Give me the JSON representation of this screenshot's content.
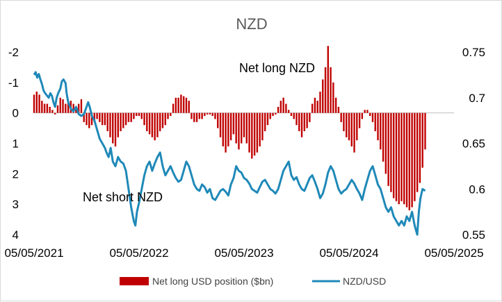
{
  "chart_data": {
    "type": "bar+line",
    "title": "NZD",
    "x_tick_labels": [
      "05/05/2021",
      "05/05/2022",
      "05/05/2023",
      "05/05/2024",
      "05/05/2025"
    ],
    "left_axis": {
      "ticks": [
        -2,
        -1,
        0,
        1,
        2,
        3,
        4
      ],
      "tick_labels": [
        "-2",
        "-1",
        "0",
        "1",
        "2",
        "3",
        "4"
      ],
      "range": [
        -2,
        4
      ],
      "inverted": true
    },
    "right_axis": {
      "ticks": [
        0.75,
        0.7,
        0.65,
        0.6,
        0.55
      ],
      "tick_labels": [
        "0.75",
        "0.7",
        "0.65",
        "0.6",
        "0.55"
      ],
      "range": [
        0.55,
        0.75
      ]
    },
    "annotations": {
      "net_long": "Net long NZD",
      "net_short": "Net short NZD"
    },
    "grid": false,
    "legend_position": "bottom",
    "series": [
      {
        "name": "Net long USD position ($bn)",
        "type": "bar",
        "axis": "left",
        "color": "#c00000",
        "points": [
          [
            0,
            -0.6
          ],
          [
            0.05,
            -0.7
          ],
          [
            0.1,
            -0.6
          ],
          [
            0.15,
            -0.4
          ],
          [
            0.2,
            -0.3
          ],
          [
            0.25,
            -0.3
          ],
          [
            0.3,
            -0.2
          ],
          [
            0.35,
            -0.1
          ],
          [
            0.4,
            0.05
          ],
          [
            0.45,
            -0.25
          ],
          [
            0.5,
            -0.5
          ],
          [
            0.55,
            -0.45
          ],
          [
            0.6,
            -0.3
          ],
          [
            0.65,
            -0.4
          ],
          [
            0.7,
            -0.4
          ],
          [
            0.75,
            -0.3
          ],
          [
            0.8,
            -0.2
          ],
          [
            0.85,
            -0.3
          ],
          [
            0.9,
            -0.45
          ],
          [
            0.95,
            0.3
          ],
          [
            1.0,
            0.4
          ],
          [
            1.05,
            0.5
          ],
          [
            1.1,
            0.4
          ],
          [
            1.15,
            0.3
          ],
          [
            1.2,
            0.2
          ],
          [
            1.25,
            0.3
          ],
          [
            1.3,
            0.4
          ],
          [
            1.35,
            0.4
          ],
          [
            1.4,
            0.6
          ],
          [
            1.45,
            0.8
          ],
          [
            1.5,
            1.0
          ],
          [
            1.55,
            1.1
          ],
          [
            1.6,
            0.8
          ],
          [
            1.65,
            0.6
          ],
          [
            1.7,
            0.5
          ],
          [
            1.75,
            0.4
          ],
          [
            1.8,
            0.3
          ],
          [
            1.85,
            0.3
          ],
          [
            1.9,
            0.2
          ],
          [
            1.95,
            0.1
          ],
          [
            2.0,
            0.1
          ],
          [
            2.05,
            0.2
          ],
          [
            2.1,
            0.4
          ],
          [
            2.15,
            0.6
          ],
          [
            2.2,
            0.7
          ],
          [
            2.25,
            0.8
          ],
          [
            2.3,
            0.9
          ],
          [
            2.35,
            0.8
          ],
          [
            2.4,
            0.6
          ],
          [
            2.45,
            0.5
          ],
          [
            2.5,
            0.4
          ],
          [
            2.55,
            0.2
          ],
          [
            2.6,
            0.1
          ],
          [
            2.65,
            -0.3
          ],
          [
            2.7,
            -0.5
          ],
          [
            2.75,
            -0.5
          ],
          [
            2.8,
            -0.6
          ],
          [
            2.85,
            -0.55
          ],
          [
            2.9,
            -0.5
          ],
          [
            2.95,
            -0.4
          ],
          [
            3.0,
            0.2
          ],
          [
            3.05,
            0.3
          ],
          [
            3.1,
            0.3
          ],
          [
            3.15,
            0.2
          ],
          [
            3.2,
            0.2
          ],
          [
            3.25,
            0.1
          ],
          [
            3.3,
            0.05
          ],
          [
            3.35,
            0.05
          ],
          [
            3.4,
            0.1
          ],
          [
            3.45,
            0.2
          ],
          [
            3.5,
            0.5
          ],
          [
            3.55,
            0.8
          ],
          [
            3.6,
            1.1
          ],
          [
            3.65,
            1.3
          ],
          [
            3.7,
            1.1
          ],
          [
            3.75,
            0.9
          ],
          [
            3.8,
            0.7
          ],
          [
            3.85,
            1.0
          ],
          [
            3.9,
            1.2
          ],
          [
            3.95,
            1.0
          ],
          [
            4.0,
            0.8
          ],
          [
            4.05,
            1.0
          ],
          [
            4.1,
            1.3
          ],
          [
            4.15,
            1.5
          ],
          [
            4.2,
            1.4
          ],
          [
            4.25,
            1.3
          ],
          [
            4.3,
            1.1
          ],
          [
            4.35,
            0.9
          ],
          [
            4.4,
            0.6
          ],
          [
            4.45,
            0.4
          ],
          [
            4.5,
            0.2
          ],
          [
            4.55,
            0.1
          ],
          [
            4.6,
            0.05
          ],
          [
            4.65,
            -0.2
          ],
          [
            4.7,
            -0.4
          ],
          [
            4.75,
            -0.5
          ],
          [
            4.8,
            -0.3
          ],
          [
            4.85,
            -0.1
          ],
          [
            4.9,
            0.1
          ],
          [
            4.95,
            0.2
          ],
          [
            5.0,
            0.4
          ],
          [
            5.05,
            0.6
          ],
          [
            5.1,
            0.8
          ],
          [
            5.15,
            0.6
          ],
          [
            5.2,
            0.5
          ],
          [
            5.25,
            0.3
          ],
          [
            5.3,
            -0.3
          ],
          [
            5.35,
            -0.5
          ],
          [
            5.4,
            -0.4
          ],
          [
            5.45,
            -0.7
          ],
          [
            5.5,
            -1.1
          ],
          [
            5.55,
            -1.5
          ],
          [
            5.6,
            -2.2
          ],
          [
            5.65,
            -1.5
          ],
          [
            5.7,
            -1.0
          ],
          [
            5.75,
            -0.5
          ],
          [
            5.8,
            -0.2
          ],
          [
            5.85,
            0.3
          ],
          [
            5.9,
            0.6
          ],
          [
            5.95,
            0.8
          ],
          [
            6.0,
            0.9
          ],
          [
            6.05,
            1.1
          ],
          [
            6.1,
            1.3
          ],
          [
            6.15,
            0.9
          ],
          [
            6.2,
            0.5
          ],
          [
            6.25,
            0.2
          ],
          [
            6.3,
            -0.1
          ],
          [
            6.35,
            -0.1
          ],
          [
            6.4,
            0.1
          ],
          [
            6.45,
            0.3
          ],
          [
            6.5,
            0.6
          ],
          [
            6.55,
            0.9
          ],
          [
            6.6,
            1.2
          ],
          [
            6.65,
            1.6
          ],
          [
            6.7,
            2.0
          ],
          [
            6.75,
            2.4
          ],
          [
            6.8,
            2.6
          ],
          [
            6.85,
            2.8
          ],
          [
            6.9,
            2.9
          ],
          [
            6.95,
            3.0
          ],
          [
            7.0,
            2.9
          ],
          [
            7.05,
            3.0
          ],
          [
            7.1,
            3.1
          ],
          [
            7.15,
            3.2
          ],
          [
            7.2,
            3.1
          ],
          [
            7.25,
            2.9
          ],
          [
            7.3,
            2.6
          ],
          [
            7.35,
            2.3
          ],
          [
            7.4,
            1.8
          ],
          [
            7.45,
            1.2
          ]
        ],
        "x_index_note": "x positions in years since 05/05/2021"
      },
      {
        "name": "NZD/USD",
        "type": "line",
        "axis": "right",
        "color": "#1f89b8",
        "points": [
          [
            0,
            0.725
          ],
          [
            0.03,
            0.728
          ],
          [
            0.06,
            0.722
          ],
          [
            0.09,
            0.726
          ],
          [
            0.12,
            0.72
          ],
          [
            0.15,
            0.715
          ],
          [
            0.18,
            0.708
          ],
          [
            0.21,
            0.705
          ],
          [
            0.25,
            0.702
          ],
          [
            0.28,
            0.7
          ],
          [
            0.31,
            0.705
          ],
          [
            0.34,
            0.702
          ],
          [
            0.37,
            0.695
          ],
          [
            0.4,
            0.69
          ],
          [
            0.43,
            0.7
          ],
          [
            0.46,
            0.705
          ],
          [
            0.5,
            0.71
          ],
          [
            0.53,
            0.718
          ],
          [
            0.56,
            0.72
          ],
          [
            0.6,
            0.716
          ],
          [
            0.62,
            0.705
          ],
          [
            0.65,
            0.695
          ],
          [
            0.7,
            0.688
          ],
          [
            0.75,
            0.685
          ],
          [
            0.8,
            0.69
          ],
          [
            0.85,
            0.682
          ],
          [
            0.9,
            0.68
          ],
          [
            0.95,
            0.682
          ],
          [
            1.0,
            0.69
          ],
          [
            1.03,
            0.695
          ],
          [
            1.06,
            0.69
          ],
          [
            1.1,
            0.68
          ],
          [
            1.15,
            0.675
          ],
          [
            1.2,
            0.665
          ],
          [
            1.25,
            0.655
          ],
          [
            1.3,
            0.65
          ],
          [
            1.35,
            0.645
          ],
          [
            1.38,
            0.64
          ],
          [
            1.42,
            0.635
          ],
          [
            1.46,
            0.645
          ],
          [
            1.5,
            0.63
          ],
          [
            1.55,
            0.625
          ],
          [
            1.6,
            0.635
          ],
          [
            1.65,
            0.63
          ],
          [
            1.7,
            0.628
          ],
          [
            1.75,
            0.62
          ],
          [
            1.8,
            0.6
          ],
          [
            1.85,
            0.58
          ],
          [
            1.9,
            0.565
          ],
          [
            1.93,
            0.56
          ],
          [
            1.96,
            0.575
          ],
          [
            2.0,
            0.585
          ],
          [
            2.05,
            0.6
          ],
          [
            2.1,
            0.615
          ],
          [
            2.15,
            0.625
          ],
          [
            2.2,
            0.63
          ],
          [
            2.25,
            0.62
          ],
          [
            2.3,
            0.628
          ],
          [
            2.35,
            0.635
          ],
          [
            2.4,
            0.64
          ],
          [
            2.45,
            0.625
          ],
          [
            2.5,
            0.615
          ],
          [
            2.55,
            0.62
          ],
          [
            2.6,
            0.625
          ],
          [
            2.65,
            0.618
          ],
          [
            2.7,
            0.612
          ],
          [
            2.75,
            0.608
          ],
          [
            2.8,
            0.61
          ],
          [
            2.85,
            0.62
          ],
          [
            2.9,
            0.63
          ],
          [
            2.95,
            0.625
          ],
          [
            3.0,
            0.615
          ],
          [
            3.05,
            0.605
          ],
          [
            3.1,
            0.6
          ],
          [
            3.15,
            0.598
          ],
          [
            3.2,
            0.605
          ],
          [
            3.25,
            0.602
          ],
          [
            3.3,
            0.596
          ],
          [
            3.35,
            0.6
          ],
          [
            3.4,
            0.59
          ],
          [
            3.45,
            0.588
          ],
          [
            3.5,
            0.593
          ],
          [
            3.55,
            0.598
          ],
          [
            3.6,
            0.6
          ],
          [
            3.65,
            0.597
          ],
          [
            3.7,
            0.593
          ],
          [
            3.75,
            0.605
          ],
          [
            3.8,
            0.612
          ],
          [
            3.85,
            0.625
          ],
          [
            3.9,
            0.62
          ],
          [
            3.95,
            0.618
          ],
          [
            4.0,
            0.612
          ],
          [
            4.05,
            0.61
          ],
          [
            4.1,
            0.606
          ],
          [
            4.15,
            0.6
          ],
          [
            4.2,
            0.598
          ],
          [
            4.25,
            0.596
          ],
          [
            4.3,
            0.602
          ],
          [
            4.35,
            0.608
          ],
          [
            4.4,
            0.61
          ],
          [
            4.45,
            0.605
          ],
          [
            4.5,
            0.6
          ],
          [
            4.55,
            0.598
          ],
          [
            4.6,
            0.595
          ],
          [
            4.65,
            0.6
          ],
          [
            4.7,
            0.61
          ],
          [
            4.75,
            0.62
          ],
          [
            4.8,
            0.625
          ],
          [
            4.85,
            0.63
          ],
          [
            4.9,
            0.615
          ],
          [
            4.95,
            0.61
          ],
          [
            5.0,
            0.613
          ],
          [
            5.05,
            0.605
          ],
          [
            5.1,
            0.6
          ],
          [
            5.15,
            0.598
          ],
          [
            5.2,
            0.605
          ],
          [
            5.25,
            0.612
          ],
          [
            5.3,
            0.615
          ],
          [
            5.35,
            0.608
          ],
          [
            5.4,
            0.6
          ],
          [
            5.45,
            0.59
          ],
          [
            5.5,
            0.595
          ],
          [
            5.55,
            0.605
          ],
          [
            5.6,
            0.618
          ],
          [
            5.65,
            0.625
          ],
          [
            5.7,
            0.62
          ],
          [
            5.75,
            0.61
          ],
          [
            5.8,
            0.6
          ],
          [
            5.85,
            0.595
          ],
          [
            5.9,
            0.598
          ],
          [
            5.95,
            0.6
          ],
          [
            6.0,
            0.605
          ],
          [
            6.05,
            0.61
          ],
          [
            6.1,
            0.606
          ],
          [
            6.15,
            0.6
          ],
          [
            6.2,
            0.595
          ],
          [
            6.25,
            0.588
          ],
          [
            6.3,
            0.6
          ],
          [
            6.35,
            0.61
          ],
          [
            6.4,
            0.62
          ],
          [
            6.45,
            0.625
          ],
          [
            6.5,
            0.615
          ],
          [
            6.55,
            0.605
          ],
          [
            6.6,
            0.6
          ],
          [
            6.65,
            0.59
          ],
          [
            6.7,
            0.58
          ],
          [
            6.75,
            0.575
          ],
          [
            6.8,
            0.58
          ],
          [
            6.85,
            0.57
          ],
          [
            6.9,
            0.565
          ],
          [
            6.95,
            0.56
          ],
          [
            7.0,
            0.565
          ],
          [
            7.05,
            0.56
          ],
          [
            7.1,
            0.57
          ],
          [
            7.15,
            0.565
          ],
          [
            7.2,
            0.575
          ],
          [
            7.25,
            0.56
          ],
          [
            7.3,
            0.55
          ],
          [
            7.33,
            0.575
          ],
          [
            7.36,
            0.59
          ],
          [
            7.4,
            0.6
          ],
          [
            7.45,
            0.598
          ]
        ]
      }
    ]
  }
}
